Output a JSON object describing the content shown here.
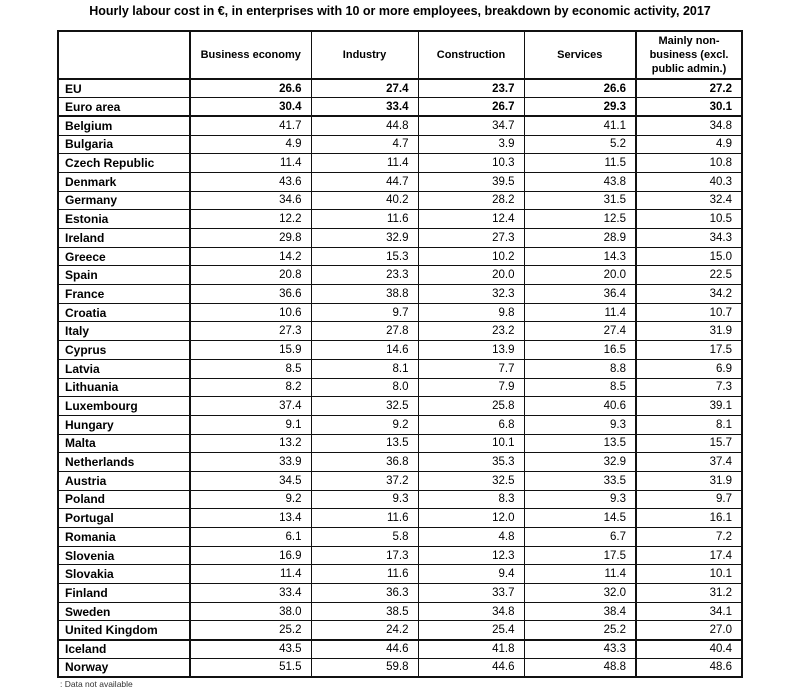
{
  "chart_data": {
    "type": "table",
    "title": "Hourly labour cost in €, in enterprises with 10 or more employees, breakdown by economic activity, 2017",
    "corner_label": "",
    "columns": [
      "Business economy",
      "Industry",
      "Construction",
      "Services",
      "Mainly non-business (excl. public admin.)"
    ],
    "rows": [
      {
        "label": "EU",
        "group": "aggregate",
        "values": [
          "26.6",
          "27.4",
          "23.7",
          "26.6",
          "27.2"
        ]
      },
      {
        "label": "Euro area",
        "group": "aggregate",
        "values": [
          "30.4",
          "33.4",
          "26.7",
          "29.3",
          "30.1"
        ]
      },
      {
        "label": "Belgium",
        "group": "member",
        "values": [
          "41.7",
          "44.8",
          "34.7",
          "41.1",
          "34.8"
        ]
      },
      {
        "label": "Bulgaria",
        "group": "member",
        "values": [
          "4.9",
          "4.7",
          "3.9",
          "5.2",
          "4.9"
        ]
      },
      {
        "label": "Czech Republic",
        "group": "member",
        "values": [
          "11.4",
          "11.4",
          "10.3",
          "11.5",
          "10.8"
        ]
      },
      {
        "label": "Denmark",
        "group": "member",
        "values": [
          "43.6",
          "44.7",
          "39.5",
          "43.8",
          "40.3"
        ]
      },
      {
        "label": "Germany",
        "group": "member",
        "values": [
          "34.6",
          "40.2",
          "28.2",
          "31.5",
          "32.4"
        ]
      },
      {
        "label": "Estonia",
        "group": "member",
        "values": [
          "12.2",
          "11.6",
          "12.4",
          "12.5",
          "10.5"
        ]
      },
      {
        "label": "Ireland",
        "group": "member",
        "values": [
          "29.8",
          "32.9",
          "27.3",
          "28.9",
          "34.3"
        ]
      },
      {
        "label": "Greece",
        "group": "member",
        "values": [
          "14.2",
          "15.3",
          "10.2",
          "14.3",
          "15.0"
        ]
      },
      {
        "label": "Spain",
        "group": "member",
        "values": [
          "20.8",
          "23.3",
          "20.0",
          "20.0",
          "22.5"
        ]
      },
      {
        "label": "France",
        "group": "member",
        "values": [
          "36.6",
          "38.8",
          "32.3",
          "36.4",
          "34.2"
        ]
      },
      {
        "label": "Croatia",
        "group": "member",
        "values": [
          "10.6",
          "9.7",
          "9.8",
          "11.4",
          "10.7"
        ]
      },
      {
        "label": "Italy",
        "group": "member",
        "values": [
          "27.3",
          "27.8",
          "23.2",
          "27.4",
          "31.9"
        ]
      },
      {
        "label": "Cyprus",
        "group": "member",
        "values": [
          "15.9",
          "14.6",
          "13.9",
          "16.5",
          "17.5"
        ]
      },
      {
        "label": "Latvia",
        "group": "member",
        "values": [
          "8.5",
          "8.1",
          "7.7",
          "8.8",
          "6.9"
        ]
      },
      {
        "label": "Lithuania",
        "group": "member",
        "values": [
          "8.2",
          "8.0",
          "7.9",
          "8.5",
          "7.3"
        ]
      },
      {
        "label": "Luxembourg",
        "group": "member",
        "values": [
          "37.4",
          "32.5",
          "25.8",
          "40.6",
          "39.1"
        ]
      },
      {
        "label": "Hungary",
        "group": "member",
        "values": [
          "9.1",
          "9.2",
          "6.8",
          "9.3",
          "8.1"
        ]
      },
      {
        "label": "Malta",
        "group": "member",
        "values": [
          "13.2",
          "13.5",
          "10.1",
          "13.5",
          "15.7"
        ]
      },
      {
        "label": "Netherlands",
        "group": "member",
        "values": [
          "33.9",
          "36.8",
          "35.3",
          "32.9",
          "37.4"
        ]
      },
      {
        "label": "Austria",
        "group": "member",
        "values": [
          "34.5",
          "37.2",
          "32.5",
          "33.5",
          "31.9"
        ]
      },
      {
        "label": "Poland",
        "group": "member",
        "values": [
          "9.2",
          "9.3",
          "8.3",
          "9.3",
          "9.7"
        ]
      },
      {
        "label": "Portugal",
        "group": "member",
        "values": [
          "13.4",
          "11.6",
          "12.0",
          "14.5",
          "16.1"
        ]
      },
      {
        "label": "Romania",
        "group": "member",
        "values": [
          "6.1",
          "5.8",
          "4.8",
          "6.7",
          "7.2"
        ]
      },
      {
        "label": "Slovenia",
        "group": "member",
        "values": [
          "16.9",
          "17.3",
          "12.3",
          "17.5",
          "17.4"
        ]
      },
      {
        "label": "Slovakia",
        "group": "member",
        "values": [
          "11.4",
          "11.6",
          "9.4",
          "11.4",
          "10.1"
        ]
      },
      {
        "label": "Finland",
        "group": "member",
        "values": [
          "33.4",
          "36.3",
          "33.7",
          "32.0",
          "31.2"
        ]
      },
      {
        "label": "Sweden",
        "group": "member",
        "values": [
          "38.0",
          "38.5",
          "34.8",
          "38.4",
          "34.1"
        ]
      },
      {
        "label": "United Kingdom",
        "group": "member",
        "values": [
          "25.2",
          "24.2",
          "25.4",
          "25.2",
          "27.0"
        ]
      },
      {
        "label": "Iceland",
        "group": "efta",
        "values": [
          "43.5",
          "44.6",
          "41.8",
          "43.3",
          "40.4"
        ]
      },
      {
        "label": "Norway",
        "group": "efta",
        "values": [
          "51.5",
          "59.8",
          "44.6",
          "48.8",
          "48.6"
        ]
      }
    ],
    "footnote": ": Data not available",
    "colors": {
      "text": "#000000",
      "border": "#111111",
      "background": "#ffffff"
    }
  }
}
